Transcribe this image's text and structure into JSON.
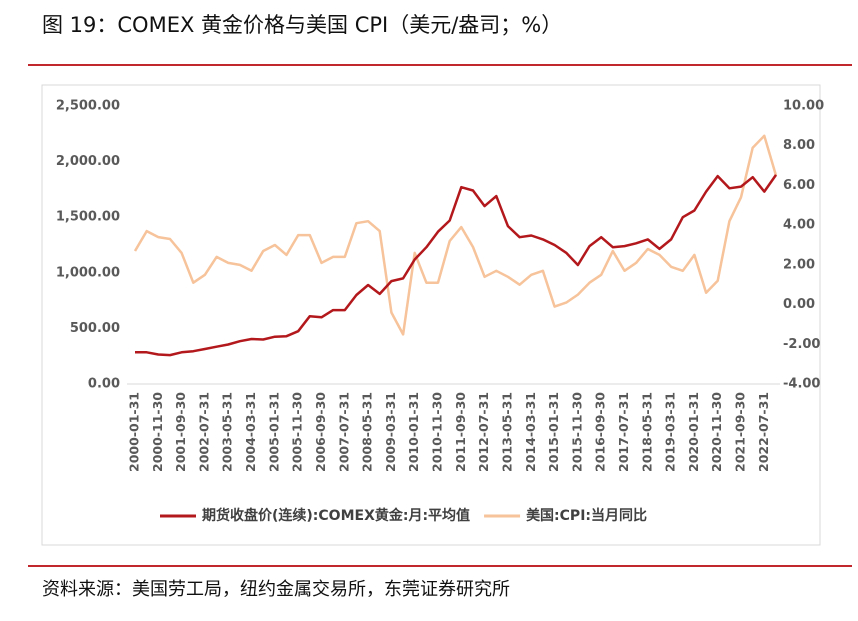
{
  "chart_data": {
    "type": "line",
    "title": "图 19：COMEX 黄金价格与美国 CPI（美元/盎司；%）",
    "source": "资料来源：美国劳工局，纽约金属交易所，东莞证券研究所",
    "categories": [
      "2000-01-31",
      null,
      "2000-11-30",
      null,
      "2001-09-30",
      null,
      "2002-07-31",
      null,
      "2003-05-31",
      null,
      "2004-03-31",
      null,
      "2005-01-31",
      null,
      "2005-11-30",
      null,
      "2006-09-30",
      null,
      "2007-07-31",
      null,
      "2008-05-31",
      null,
      "2009-03-31",
      null,
      "2010-01-31",
      null,
      "2010-11-30",
      null,
      "2011-09-30",
      null,
      "2012-07-31",
      null,
      "2013-05-31",
      null,
      "2014-03-31",
      null,
      "2015-01-31",
      null,
      "2015-11-30",
      null,
      "2016-09-30",
      null,
      "2017-07-31",
      null,
      "2018-05-31",
      null,
      "2019-03-31",
      null,
      "2020-01-31",
      null,
      "2020-11-30",
      null,
      "2021-09-30",
      null,
      "2022-07-31",
      null
    ],
    "series": [
      {
        "name": "期货收盘价(连续):COMEX黄金:月:平均值",
        "color": "#b3181c",
        "values": [
          285,
          285,
          265,
          260,
          285,
          295,
          315,
          335,
          355,
          385,
          405,
          400,
          425,
          430,
          475,
          610,
          600,
          665,
          665,
          800,
          890,
          810,
          925,
          950,
          1120,
          1230,
          1370,
          1470,
          1770,
          1740,
          1600,
          1690,
          1420,
          1320,
          1335,
          1300,
          1250,
          1180,
          1070,
          1240,
          1320,
          1230,
          1240,
          1265,
          1300,
          1215,
          1300,
          1500,
          1560,
          1730,
          1870,
          1760,
          1775,
          1860,
          1730,
          1880
        ]
      },
      {
        "name": "美国:CPI:当月同比",
        "color": "#f6c39a",
        "axis": "y2",
        "values": [
          2.7,
          3.7,
          3.4,
          3.3,
          2.6,
          1.1,
          1.5,
          2.4,
          2.1,
          2.0,
          1.7,
          2.7,
          3.0,
          2.5,
          3.5,
          3.5,
          2.1,
          2.4,
          2.4,
          4.1,
          4.2,
          3.7,
          -0.4,
          -1.5,
          2.6,
          1.1,
          1.1,
          3.2,
          3.9,
          2.9,
          1.4,
          1.7,
          1.4,
          1.0,
          1.5,
          1.7,
          -0.1,
          0.1,
          0.5,
          1.1,
          1.5,
          2.7,
          1.7,
          2.1,
          2.8,
          2.5,
          1.9,
          1.7,
          2.5,
          0.6,
          1.2,
          4.2,
          5.4,
          7.9,
          8.5,
          6.5
        ]
      }
    ],
    "ylim": [
      0,
      2500
    ],
    "yticks": [
      {
        "value": 0,
        "label": "0.00"
      },
      {
        "value": 500,
        "label": "500.00"
      },
      {
        "value": 1000,
        "label": "1,000.00"
      },
      {
        "value": 1500,
        "label": "1,500.00"
      },
      {
        "value": 2000,
        "label": "2,000.00"
      },
      {
        "value": 2500,
        "label": "2,500.00"
      }
    ],
    "y2lim": [
      -4,
      10
    ],
    "y2ticks": [
      {
        "value": -4,
        "label": "-4.00"
      },
      {
        "value": -2,
        "label": "-2.00"
      },
      {
        "value": 0,
        "label": "0.00"
      },
      {
        "value": 2,
        "label": "2.00"
      },
      {
        "value": 4,
        "label": "4.00"
      },
      {
        "value": 6,
        "label": "6.00"
      },
      {
        "value": 8,
        "label": "8.00"
      },
      {
        "value": 10,
        "label": "10.00"
      }
    ],
    "grid": false
  }
}
